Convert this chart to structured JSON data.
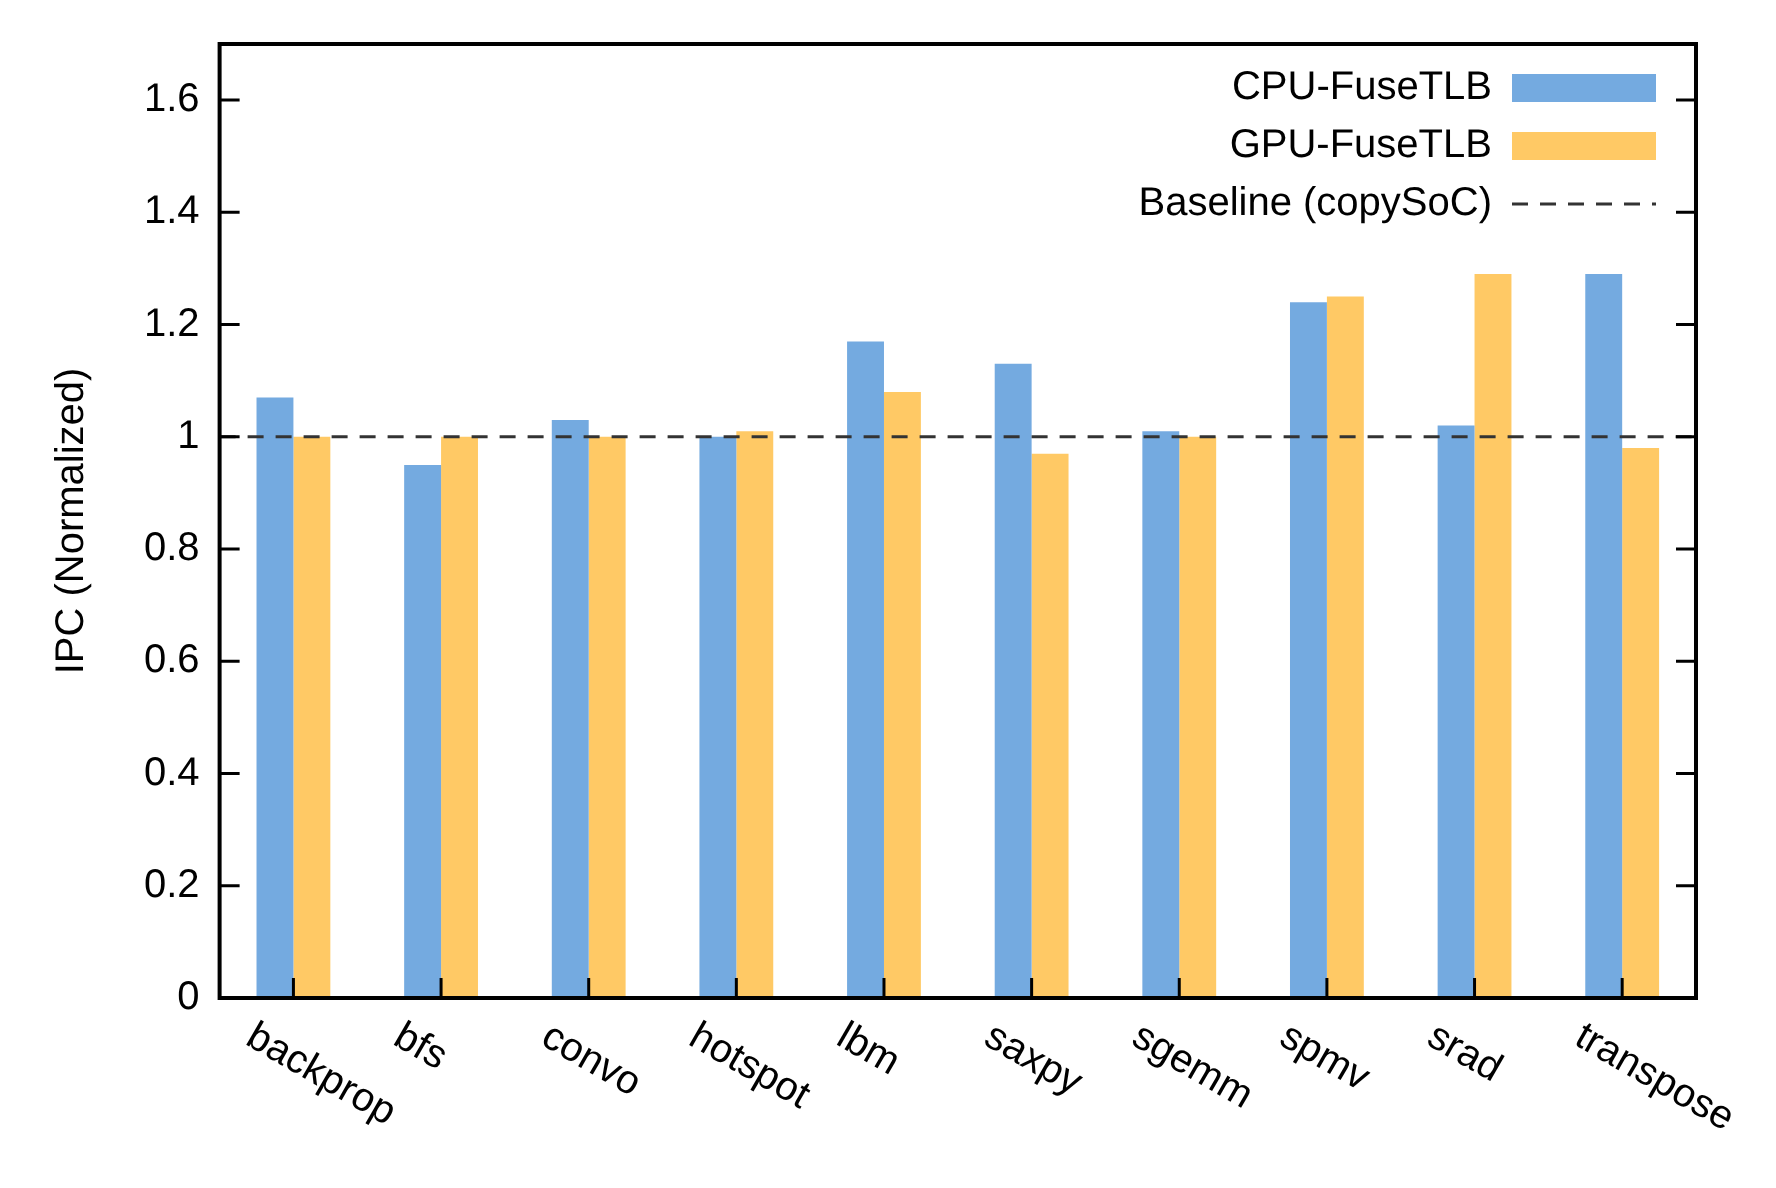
{
  "chart_data": {
    "type": "bar",
    "ylabel": "IPC (Normalized)",
    "categories": [
      "backprop",
      "bfs",
      "convo",
      "hotspot",
      "lbm",
      "saxpy",
      "sgemm",
      "spmv",
      "srad",
      "transpose"
    ],
    "series": [
      {
        "name": "CPU-FuseTLB",
        "color": "#74aae0",
        "values": [
          1.07,
          0.95,
          1.03,
          1.0,
          1.17,
          1.13,
          1.01,
          1.24,
          1.02,
          1.29
        ]
      },
      {
        "name": "GPU-FuseTLB",
        "color": "#ffc965",
        "values": [
          1.0,
          1.0,
          1.0,
          1.01,
          1.08,
          0.97,
          1.0,
          1.25,
          1.29,
          0.98
        ]
      }
    ],
    "ylim": [
      0,
      1.7
    ],
    "yticks": [
      0,
      0.2,
      0.4,
      0.6,
      0.8,
      1,
      1.2,
      1.4,
      1.6
    ],
    "ref_lines": [
      {
        "axis": "y",
        "value": 1,
        "label": "Baseline (copySoC)",
        "color": "#333333",
        "line_style": "dashed"
      }
    ],
    "legend": "top right",
    "grid": false
  }
}
